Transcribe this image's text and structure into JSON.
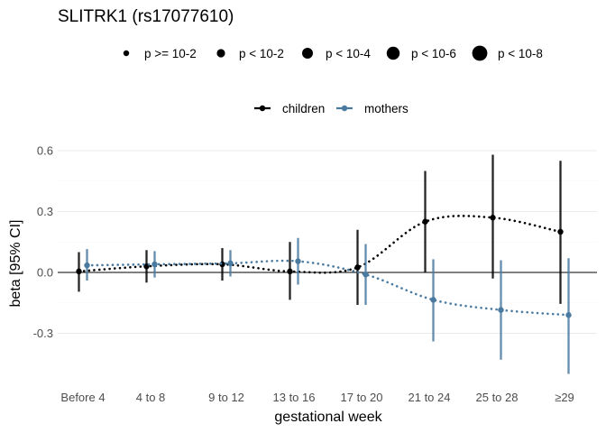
{
  "chart_data": {
    "type": "line",
    "title": "SLITRK1 (rs17077610)",
    "xlabel": "gestational week",
    "ylabel": "beta [95% CI]",
    "categories": [
      "Before 4",
      "4 to 8",
      "9 to 12",
      "13 to 16",
      "17 to 20",
      "21 to 24",
      "25 to 28",
      "≥29"
    ],
    "ylim": [
      -0.42,
      0.67
    ],
    "yticks": [
      -0.3,
      0.0,
      0.3,
      0.6
    ],
    "ytick_labels": [
      "-0.3",
      "0.0",
      "0.3",
      "0.6"
    ],
    "grid": true,
    "size_legend": {
      "entries": [
        "p >= 10-2",
        "p < 10-2",
        "p < 10-4",
        "p < 10-6",
        "p < 10-8"
      ],
      "placement": "top"
    },
    "color_legend": {
      "placement": "top"
    },
    "series": [
      {
        "name": "children",
        "color": "#000000",
        "values": [
          0.005,
          0.03,
          0.04,
          0.005,
          0.025,
          0.25,
          0.27,
          0.2
        ],
        "ci_low": [
          -0.095,
          -0.05,
          -0.04,
          -0.135,
          -0.16,
          0.0,
          -0.03,
          -0.155
        ],
        "ci_high": [
          0.1,
          0.11,
          0.12,
          0.15,
          0.21,
          0.5,
          0.58,
          0.55
        ],
        "p_level": [
          0,
          0,
          0,
          0,
          0,
          0,
          0,
          0
        ]
      },
      {
        "name": "mothers",
        "color": "#4a7aa0",
        "values": [
          0.035,
          0.04,
          0.045,
          0.055,
          -0.01,
          -0.135,
          -0.185,
          -0.21
        ],
        "ci_low": [
          -0.04,
          -0.025,
          -0.02,
          -0.06,
          -0.16,
          -0.34,
          -0.43,
          -0.5
        ],
        "ci_high": [
          0.115,
          0.105,
          0.11,
          0.17,
          0.14,
          0.065,
          0.06,
          0.07
        ],
        "p_level": [
          0,
          0,
          0,
          0,
          0,
          0,
          0,
          0
        ]
      }
    ]
  }
}
